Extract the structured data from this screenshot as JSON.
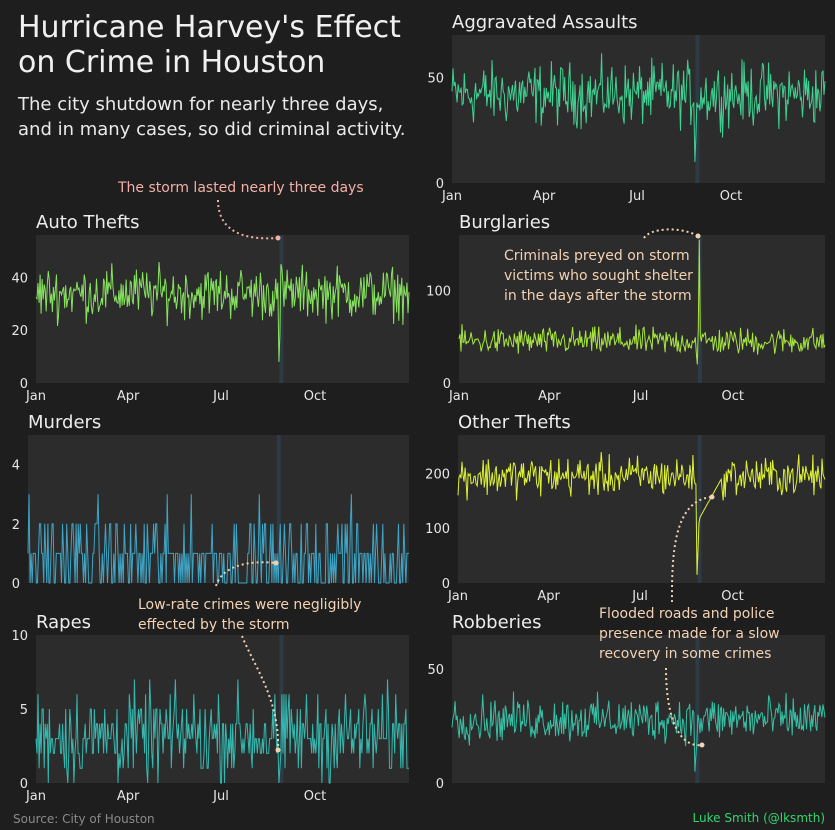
{
  "title": "Hurricane Harvey's Effect on Crime in Houston",
  "subtitle": "The city shutdown for nearly three days, and in many cases, so did criminal activity.",
  "source": "Source: City of Houston",
  "credit": "Luke Smith (@lksmth)",
  "colors": {
    "background": "#1e1e1e",
    "panel": "#2c2c2c",
    "storm_band": "#2e3b47",
    "annotation_pink": "#f2b0a8",
    "annotation_peach": "#f3d2b3",
    "credit": "#34d46f"
  },
  "annotations": [
    {
      "text": "The storm lasted nearly three days",
      "color": "#f2b0a8"
    },
    {
      "text": "Criminals preyed on storm victims who sought shelter in the days after the storm",
      "color": "#f3d2b3"
    },
    {
      "text": "Low-rate crimes were negligibly effected by the storm",
      "color": "#f3d2b3"
    },
    {
      "text": "Flooded roads and police presence made for a slow recovery in some crimes",
      "color": "#f3d2b3"
    }
  ],
  "chart_data": [
    {
      "type": "line",
      "title": "Aggravated Assaults",
      "color": "#3fd192",
      "x_range": [
        "Jan 1",
        "Dec 31"
      ],
      "x_ticks": [
        "Jan",
        "Apr",
        "Jul",
        "Oct"
      ],
      "y_ticks": [
        "0",
        "50"
      ],
      "ylim": [
        0,
        70
      ],
      "baseline": 42,
      "spread": 9,
      "storm": "Aug 26 - Aug 28",
      "storm_values": [
        10,
        22,
        38
      ]
    },
    {
      "type": "line",
      "title": "Auto Thefts",
      "color": "#86e35e",
      "x_range": [
        "Jan 1",
        "Dec 31"
      ],
      "x_ticks": [
        "Jan",
        "Apr",
        "Jul",
        "Oct"
      ],
      "y_ticks": [
        "0",
        "20",
        "40"
      ],
      "ylim": [
        0,
        56
      ],
      "baseline": 34,
      "spread": 6,
      "storm": "Aug 26 - Aug 28",
      "storm_values": [
        8,
        18,
        45
      ]
    },
    {
      "type": "line",
      "title": "Burglaries",
      "color": "#a7e63d",
      "x_range": [
        "Jan 1",
        "Dec 31"
      ],
      "x_ticks": [
        "Jan",
        "Apr",
        "Jul",
        "Oct"
      ],
      "y_ticks": [
        "0",
        "100"
      ],
      "ylim": [
        0,
        160
      ],
      "baseline": 45,
      "spread": 9,
      "storm": "Aug 26 - Aug 28",
      "storm_values": [
        20,
        60,
        155
      ]
    },
    {
      "type": "line",
      "title": "Murders",
      "color": "#3fa4c4",
      "x_range": [
        "Jan 1",
        "Dec 31"
      ],
      "x_ticks": [],
      "y_ticks": [
        "0",
        "2",
        "4"
      ],
      "ylim": [
        0,
        5
      ],
      "baseline": 0.8,
      "spread": 1,
      "storm": "Aug 26 - Aug 28",
      "storm_values": [
        0,
        1,
        0
      ],
      "discrete": true
    },
    {
      "type": "line",
      "title": "Other Thefts",
      "color": "#dff134",
      "x_range": [
        "Jan 1",
        "Dec 31"
      ],
      "x_ticks": [
        "Jan",
        "Apr",
        "Jul",
        "Oct"
      ],
      "y_ticks": [
        "0",
        "100",
        "200"
      ],
      "ylim": [
        0,
        270
      ],
      "baseline": 195,
      "spread": 22,
      "storm": "Aug 26 - Aug 28",
      "storm_values": [
        15,
        60,
        110
      ]
    },
    {
      "type": "line",
      "title": "Rapes",
      "color": "#34b8b0",
      "x_range": [
        "Jan 1",
        "Dec 31"
      ],
      "x_ticks": [
        "Jan",
        "Apr",
        "Jul",
        "Oct"
      ],
      "y_ticks": [
        "0",
        "5",
        "10"
      ],
      "ylim": [
        0,
        10
      ],
      "baseline": 3.2,
      "spread": 1.8,
      "storm": "Aug 26 - Aug 28",
      "storm_values": [
        0,
        1,
        2
      ],
      "discrete": true
    },
    {
      "type": "line",
      "title": "Robberies",
      "color": "#35c1a6",
      "x_range": [
        "Jan 1",
        "Dec 31"
      ],
      "x_ticks": [],
      "y_ticks": [
        "0",
        "50"
      ],
      "ylim": [
        0,
        65
      ],
      "baseline": 28,
      "spread": 6,
      "storm": "Aug 26 - Aug 28",
      "storm_values": [
        5,
        12,
        18
      ]
    }
  ]
}
